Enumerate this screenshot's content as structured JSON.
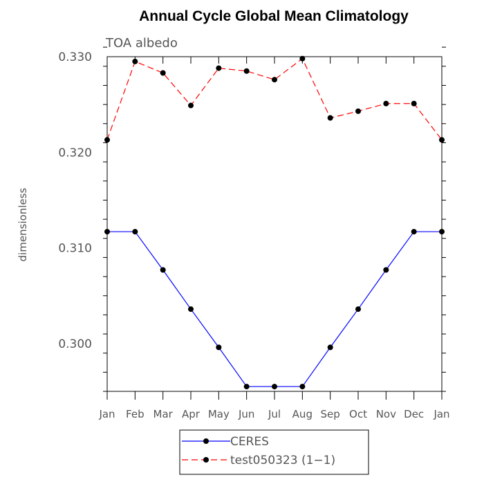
{
  "chart_data": {
    "type": "line",
    "title": "Annual Cycle Global Mean Climatology",
    "subtitle": "TOA albedo",
    "xlabel": "",
    "ylabel": "dimensionless",
    "categories": [
      "Jan",
      "Feb",
      "Mar",
      "Apr",
      "May",
      "Jun",
      "Jul",
      "Aug",
      "Sep",
      "Oct",
      "Nov",
      "Dec",
      "Jan"
    ],
    "ylim": [
      0.295,
      0.33
    ],
    "yticks": [
      0.3,
      0.31,
      0.32,
      0.33
    ],
    "ytick_labels": [
      "0.300",
      "0.310",
      "0.320",
      "0.330"
    ],
    "series": [
      {
        "name": "CERES",
        "color": "#0000ff",
        "line_style": "solid",
        "values": [
          0.3117,
          0.3117,
          0.3077,
          0.3036,
          0.2996,
          0.2955,
          0.2955,
          0.2955,
          0.2996,
          0.3036,
          0.3077,
          0.3117,
          0.3117
        ]
      },
      {
        "name": "test050323 (1−1)",
        "color": "#ff0000",
        "line_style": "dashed",
        "values": [
          0.3213,
          0.3295,
          0.3283,
          0.3249,
          0.3288,
          0.3285,
          0.3276,
          0.3298,
          0.3236,
          0.3243,
          0.3251,
          0.3251,
          0.3213
        ]
      }
    ],
    "legend_position": "bottom"
  }
}
